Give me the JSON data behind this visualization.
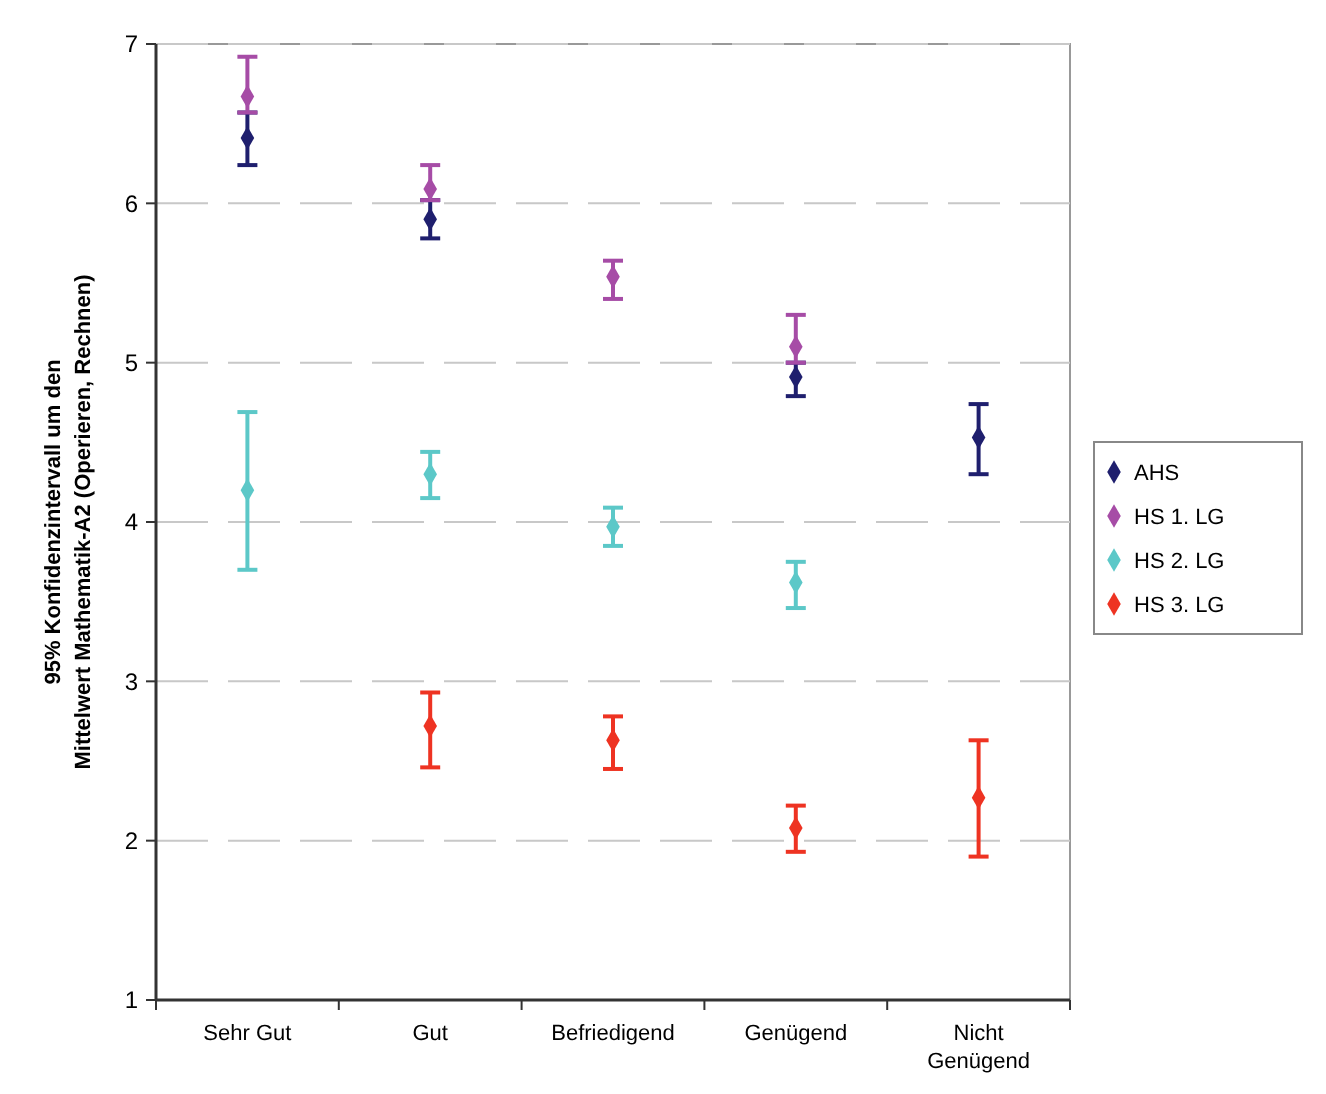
{
  "chart_data": {
    "type": "scatter",
    "ylabel": "95% Konfidenzintervall um den\nMittelwert Mathematik-A2 (Operieren, Rechnen)",
    "categories": [
      "Sehr Gut",
      "Gut",
      "Befriedigend",
      "Genügend",
      "Nicht Genügend"
    ],
    "series": [
      {
        "name": "AHS",
        "color": "#1f1f6e",
        "values": [
          6.41,
          5.9,
          null,
          4.91,
          4.53
        ],
        "errors": [
          [
            6.24,
            6.57
          ],
          [
            5.78,
            6.02
          ],
          null,
          [
            4.79,
            5.0
          ],
          [
            4.3,
            4.74
          ]
        ]
      },
      {
        "name": "HS 1. LG",
        "color": "#a64ca6",
        "values": [
          6.67,
          6.09,
          5.54,
          5.1,
          null
        ],
        "errors": [
          [
            6.57,
            6.92
          ],
          [
            6.02,
            6.24
          ],
          [
            5.4,
            5.64
          ],
          [
            5.0,
            5.3
          ],
          null
        ]
      },
      {
        "name": "HS 2. LG",
        "color": "#5cc8c8",
        "values": [
          4.2,
          4.3,
          3.97,
          3.62,
          null
        ],
        "errors": [
          [
            3.7,
            4.69
          ],
          [
            4.15,
            4.44
          ],
          [
            3.85,
            4.09
          ],
          [
            3.46,
            3.75
          ],
          null
        ]
      },
      {
        "name": "HS 3. LG",
        "color": "#ee3322",
        "values": [
          null,
          2.72,
          2.63,
          2.08,
          2.27
        ],
        "errors": [
          null,
          [
            2.46,
            2.93
          ],
          [
            2.45,
            2.78
          ],
          [
            1.93,
            2.22
          ],
          [
            1.9,
            2.63
          ]
        ]
      }
    ],
    "ylim": [
      1,
      7
    ],
    "yticks": [
      1,
      2,
      3,
      4,
      5,
      6,
      7
    ],
    "grid": "y",
    "legend": "right",
    "marker": "diamond"
  }
}
